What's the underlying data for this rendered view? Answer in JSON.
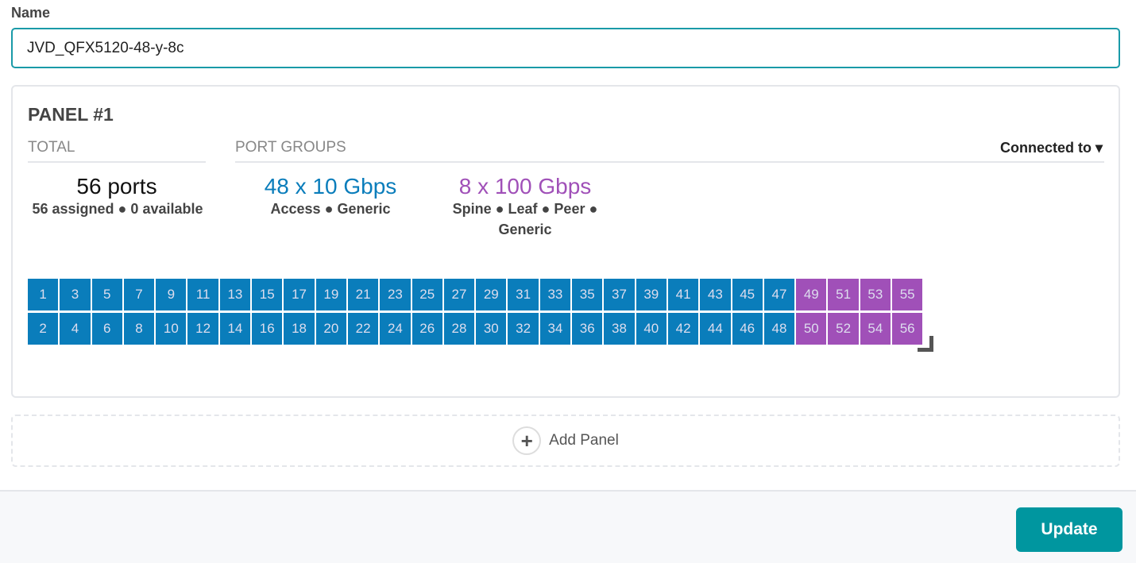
{
  "name_label": "Name",
  "name_value": "JVD_QFX5120-48-y-8c",
  "panel": {
    "title": "PANEL #1",
    "total_header": "TOTAL",
    "groups_header": "PORT GROUPS",
    "connected_to": "Connected to ▾",
    "total": {
      "count": "56 ports",
      "detail": "56 assigned ● 0 available"
    },
    "groups": [
      {
        "speed": "48 x 10 Gbps",
        "roles": "Access ● Generic",
        "color": "#0a7dbb"
      },
      {
        "speed": "8 x 100 Gbps",
        "roles": "Spine ● Leaf ● Peer ● Generic",
        "color": "#a050b8"
      }
    ],
    "ports": {
      "count": 56,
      "group1_last": 48,
      "group1_color": "#0a7dbb",
      "group2_color": "#a050b8"
    }
  },
  "add_panel": "Add Panel",
  "update": "Update"
}
